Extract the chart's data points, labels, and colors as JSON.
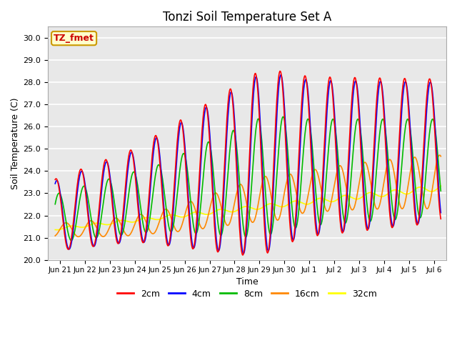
{
  "title": "Tonzi Soil Temperature Set A",
  "xlabel": "Time",
  "ylabel": "Soil Temperature (C)",
  "ylim": [
    20.0,
    30.5
  ],
  "yticks": [
    20.0,
    21.0,
    22.0,
    23.0,
    24.0,
    25.0,
    26.0,
    27.0,
    28.0,
    29.0,
    30.0
  ],
  "colors": {
    "2cm": "#ff0000",
    "4cm": "#0000ff",
    "8cm": "#00bb00",
    "16cm": "#ff8800",
    "32cm": "#ffff00"
  },
  "legend_label": "TZ_fmet",
  "legend_bg": "#ffffcc",
  "legend_border": "#cc9900",
  "bg_color": "#e8e8e8",
  "grid_color": "#ffffff",
  "line_width": 1.2,
  "title_fontsize": 12,
  "axis_label_fontsize": 9,
  "tick_fontsize": 8
}
